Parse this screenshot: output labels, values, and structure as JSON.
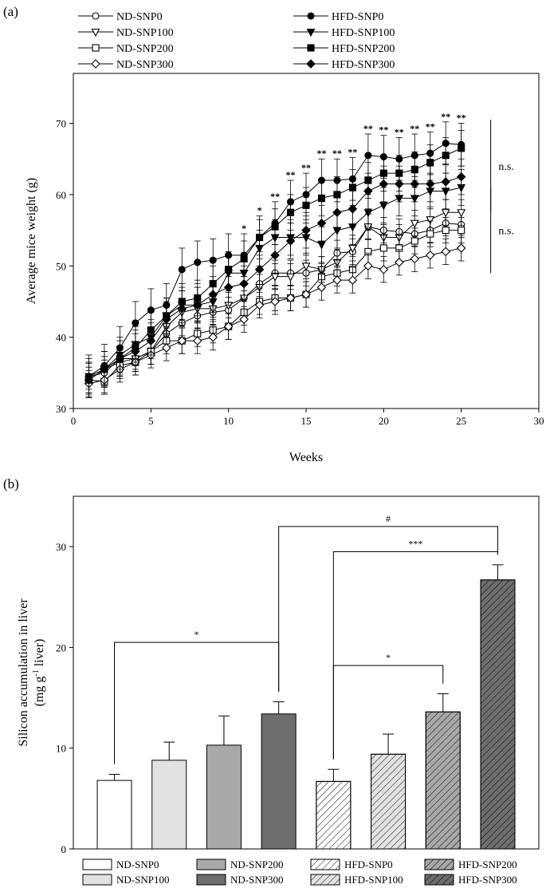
{
  "chart_data": [
    {
      "panel": "(a)",
      "type": "line",
      "xlabel": "Weeks",
      "ylabel": "Average mice weight (g)",
      "xlim": [
        0,
        30
      ],
      "ylim": [
        30,
        77
      ],
      "xticks": [
        0,
        5,
        10,
        15,
        20,
        25,
        30
      ],
      "yticks": [
        30,
        40,
        50,
        60,
        70
      ],
      "x": [
        1,
        2,
        3,
        4,
        5,
        6,
        7,
        8,
        9,
        10,
        11,
        12,
        13,
        14,
        15,
        16,
        17,
        18,
        19,
        20,
        21,
        22,
        23,
        24,
        25
      ],
      "series": [
        {
          "name": "ND-SNP0",
          "marker": "circle",
          "fill": "open",
          "err": 1.8,
          "values": [
            34.5,
            35.0,
            37.0,
            37.0,
            38.0,
            40.5,
            42.0,
            43.0,
            43.5,
            43.8,
            45.5,
            47.5,
            49.0,
            49.0,
            49.0,
            49.5,
            51.8,
            52.0,
            55.5,
            55.0,
            54.8,
            54.5,
            55.0,
            56.0,
            55.8
          ]
        },
        {
          "name": "ND-SNP100",
          "marker": "triangle-down",
          "fill": "open",
          "err": 1.8,
          "values": [
            34.0,
            35.5,
            36.5,
            37.0,
            38.0,
            41.5,
            43.5,
            44.0,
            44.0,
            44.5,
            45.5,
            47.0,
            48.5,
            48.5,
            50.0,
            49.5,
            50.5,
            52.5,
            55.5,
            54.0,
            54.0,
            56.0,
            56.5,
            57.5,
            57.5
          ]
        },
        {
          "name": "ND-SNP200",
          "marker": "square",
          "fill": "open",
          "err": 1.8,
          "values": [
            34.0,
            33.8,
            36.0,
            36.5,
            38.0,
            39.5,
            39.5,
            40.5,
            41.0,
            41.5,
            43.5,
            45.0,
            45.5,
            45.5,
            46.0,
            48.5,
            49.0,
            49.5,
            52.0,
            52.5,
            52.5,
            53.5,
            54.5,
            55.0,
            55.0
          ]
        },
        {
          "name": "ND-SNP300",
          "marker": "diamond",
          "fill": "open",
          "err": 1.8,
          "values": [
            33.5,
            34.0,
            35.5,
            36.5,
            37.5,
            38.5,
            39.5,
            39.5,
            40.0,
            41.5,
            42.5,
            44.5,
            45.0,
            45.5,
            46.0,
            47.0,
            48.0,
            48.0,
            50.0,
            49.5,
            50.5,
            51.0,
            51.5,
            52.0,
            52.5
          ]
        },
        {
          "name": "HFD-SNP0",
          "marker": "circle",
          "fill": "filled",
          "err": 3.0,
          "values": [
            34.5,
            36.0,
            38.5,
            42.0,
            43.8,
            44.5,
            49.5,
            50.5,
            50.8,
            51.5,
            51.5,
            54.0,
            56.0,
            59.0,
            60.0,
            62.0,
            62.0,
            62.2,
            65.5,
            65.3,
            65.0,
            65.5,
            65.8,
            67.2,
            67.0
          ]
        },
        {
          "name": "HFD-SNP100",
          "marker": "triangle-down",
          "fill": "filled",
          "err": 2.5,
          "values": [
            34.5,
            35.5,
            37.5,
            39.0,
            40.0,
            43.0,
            44.5,
            44.5,
            45.0,
            49.0,
            49.0,
            52.5,
            54.0,
            54.0,
            54.0,
            53.0,
            55.0,
            55.5,
            57.5,
            58.5,
            59.5,
            59.5,
            60.5,
            60.5,
            61.0
          ]
        },
        {
          "name": "HFD-SNP200",
          "marker": "square",
          "fill": "filled",
          "err": 2.5,
          "values": [
            34.0,
            35.5,
            37.0,
            38.5,
            41.0,
            43.0,
            45.0,
            45.5,
            47.5,
            49.5,
            51.0,
            54.0,
            55.5,
            57.5,
            58.5,
            59.5,
            60.0,
            61.0,
            62.0,
            63.0,
            63.0,
            63.5,
            64.5,
            65.5,
            66.5
          ]
        },
        {
          "name": "HFD-SNP300",
          "marker": "diamond",
          "fill": "filled",
          "err": 2.5,
          "values": [
            34.0,
            35.5,
            37.0,
            38.0,
            39.5,
            42.5,
            44.0,
            44.5,
            46.0,
            47.0,
            47.5,
            49.5,
            51.5,
            53.5,
            55.0,
            56.0,
            57.5,
            58.0,
            60.5,
            61.5,
            61.5,
            61.5,
            61.5,
            61.8,
            62.5
          ]
        }
      ],
      "significance": [
        {
          "week": 11,
          "label": "*"
        },
        {
          "week": 12,
          "label": "*"
        },
        {
          "week": 13,
          "label": "**"
        },
        {
          "week": 14,
          "label": "**"
        },
        {
          "week": 15,
          "label": "**"
        },
        {
          "week": 16,
          "label": "**"
        },
        {
          "week": 17,
          "label": "**"
        },
        {
          "week": 18,
          "label": "**"
        },
        {
          "week": 19,
          "label": "**"
        },
        {
          "week": 20,
          "label": "**"
        },
        {
          "week": 21,
          "label": "**"
        },
        {
          "week": 22,
          "label": "**"
        },
        {
          "week": 23,
          "label": "**"
        },
        {
          "week": 24,
          "label": "**"
        },
        {
          "week": 25,
          "label": "**"
        }
      ],
      "group_annotations": [
        {
          "label": "n.s.",
          "group": "HFD"
        },
        {
          "label": "n.s.",
          "group": "ND"
        }
      ]
    },
    {
      "panel": "(b)",
      "type": "bar",
      "xlabel": "",
      "ylabel_line1": "Silicon accumulation in liver",
      "ylabel_line2_prefix": "(mg g",
      "ylabel_line2_sup": "-1",
      "ylabel_line2_suffix": " liver)",
      "ylim": [
        0,
        35
      ],
      "yticks": [
        0,
        10,
        20,
        30
      ],
      "categories": [
        "ND-SNP0",
        "ND-SNP100",
        "ND-SNP200",
        "ND-SNP300",
        "HFD-SNP0",
        "HFD-SNP100",
        "HFD-SNP200",
        "HFD-SNP300"
      ],
      "values": [
        6.8,
        8.8,
        10.3,
        13.4,
        6.7,
        9.4,
        13.6,
        26.7
      ],
      "errors": [
        0.6,
        1.8,
        2.9,
        1.2,
        1.2,
        2.0,
        1.8,
        1.5
      ],
      "legend_order": [
        "ND-SNP0",
        "ND-SNP200",
        "HFD-SNP0",
        "HFD-SNP200",
        "ND-SNP100",
        "ND-SNP300",
        "HFD-SNP100",
        "HFD-SNP300"
      ],
      "styles": {
        "ND-SNP0": {
          "color": "#ffffff",
          "hatch": false
        },
        "ND-SNP100": {
          "color": "#e2e2e2",
          "hatch": false
        },
        "ND-SNP200": {
          "color": "#a8a8a8",
          "hatch": false
        },
        "ND-SNP300": {
          "color": "#6e6e6e",
          "hatch": false
        },
        "HFD-SNP0": {
          "color": "#ffffff",
          "hatch": true
        },
        "HFD-SNP100": {
          "color": "#e2e2e2",
          "hatch": true
        },
        "HFD-SNP200": {
          "color": "#a8a8a8",
          "hatch": true
        },
        "HFD-SNP300": {
          "color": "#6e6e6e",
          "hatch": true
        }
      },
      "comparisons": [
        {
          "from": "ND-SNP0",
          "to": "ND-SNP300",
          "label": "*"
        },
        {
          "from": "HFD-SNP0",
          "to": "HFD-SNP200",
          "label": "*"
        },
        {
          "from": "HFD-SNP0",
          "to": "HFD-SNP300",
          "label": "***"
        },
        {
          "from": "ND-SNP300",
          "to": "HFD-SNP300",
          "label": "#"
        }
      ]
    }
  ]
}
